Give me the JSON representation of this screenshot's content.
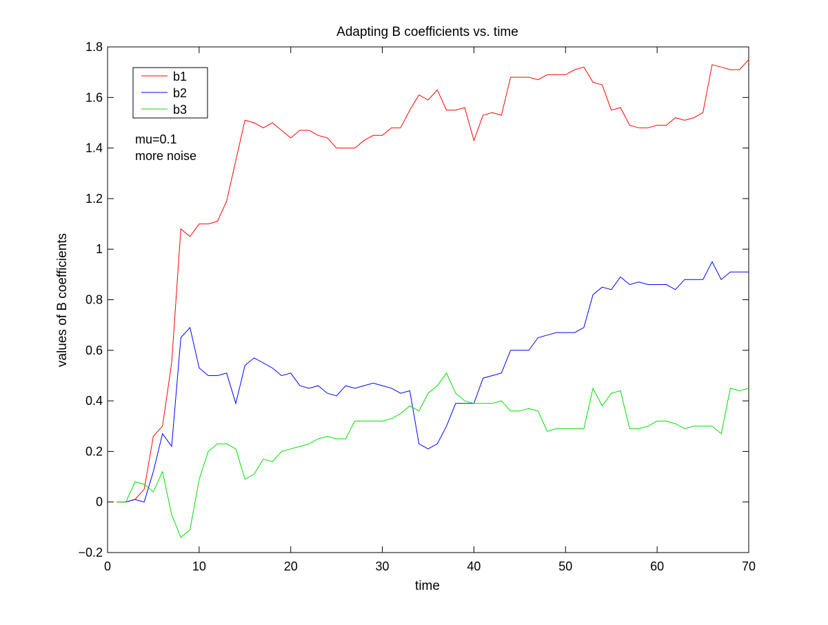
{
  "chart_data": {
    "type": "line",
    "title": "Adapting B coefficients vs. time",
    "xlabel": "time",
    "ylabel": "values of B coefficients",
    "xlim": [
      0,
      70
    ],
    "ylim": [
      -0.2,
      1.8
    ],
    "xticks": [
      0,
      10,
      20,
      30,
      40,
      50,
      60,
      70
    ],
    "xtick_labels": [
      "0",
      "10",
      "20",
      "30",
      "40",
      "50",
      "60",
      "70"
    ],
    "yticks": [
      -0.2,
      0,
      0.2,
      0.4,
      0.6,
      0.8,
      1.0,
      1.2,
      1.4,
      1.6,
      1.8
    ],
    "ytick_labels": [
      "−0.2",
      "0",
      "0.2",
      "0.4",
      "0.6",
      "0.8",
      "1",
      "1.2",
      "1.4",
      "1.6",
      "1.8"
    ],
    "grid": false,
    "legend_position": "top-left",
    "annotation": [
      "mu=0.1",
      "more noise"
    ],
    "x": [
      1,
      2,
      3,
      4,
      5,
      6,
      7,
      8,
      9,
      10,
      11,
      12,
      13,
      14,
      15,
      16,
      17,
      18,
      19,
      20,
      21,
      22,
      23,
      24,
      25,
      26,
      27,
      28,
      29,
      30,
      31,
      32,
      33,
      34,
      35,
      36,
      37,
      38,
      39,
      40,
      41,
      42,
      43,
      44,
      45,
      46,
      47,
      48,
      49,
      50,
      51,
      52,
      53,
      54,
      55,
      56,
      57,
      58,
      59,
      60,
      61,
      62,
      63,
      64,
      65,
      66,
      67,
      68,
      69,
      70
    ],
    "series": [
      {
        "name": "b1",
        "color": "#ff0000",
        "values": [
          0,
          0,
          0.01,
          0.05,
          0.26,
          0.3,
          0.55,
          1.08,
          1.05,
          1.1,
          1.1,
          1.11,
          1.19,
          1.35,
          1.51,
          1.5,
          1.48,
          1.5,
          1.47,
          1.44,
          1.47,
          1.47,
          1.45,
          1.44,
          1.4,
          1.4,
          1.4,
          1.43,
          1.45,
          1.45,
          1.48,
          1.48,
          1.55,
          1.61,
          1.59,
          1.63,
          1.55,
          1.55,
          1.56,
          1.43,
          1.53,
          1.54,
          1.53,
          1.68,
          1.68,
          1.68,
          1.67,
          1.69,
          1.69,
          1.69,
          1.71,
          1.72,
          1.66,
          1.65,
          1.55,
          1.56,
          1.49,
          1.48,
          1.48,
          1.49,
          1.49,
          1.52,
          1.51,
          1.52,
          1.54,
          1.73,
          1.72,
          1.71,
          1.71,
          1.75
        ]
      },
      {
        "name": "b2",
        "color": "#0000ff",
        "values": [
          null,
          0,
          0.01,
          0.0,
          0.12,
          0.27,
          0.22,
          0.65,
          0.69,
          0.53,
          0.5,
          0.5,
          0.51,
          0.39,
          0.54,
          0.57,
          0.55,
          0.53,
          0.5,
          0.51,
          0.46,
          0.45,
          0.46,
          0.43,
          0.42,
          0.46,
          0.45,
          0.46,
          0.47,
          0.46,
          0.45,
          0.43,
          0.44,
          0.23,
          0.21,
          0.23,
          0.3,
          0.39,
          0.39,
          0.39,
          0.49,
          0.5,
          0.51,
          0.6,
          0.6,
          0.6,
          0.65,
          0.66,
          0.67,
          0.67,
          0.67,
          0.69,
          0.82,
          0.85,
          0.84,
          0.89,
          0.86,
          0.87,
          0.86,
          0.86,
          0.86,
          0.84,
          0.88,
          0.88,
          0.88,
          0.95,
          0.88,
          0.91,
          0.91,
          0.91
        ]
      },
      {
        "name": "b3",
        "color": "#00dd00",
        "values": [
          0,
          0,
          0.08,
          0.07,
          0.04,
          0.12,
          -0.05,
          -0.14,
          -0.11,
          0.09,
          0.2,
          0.23,
          0.23,
          0.21,
          0.09,
          0.11,
          0.17,
          0.16,
          0.2,
          0.21,
          0.22,
          0.23,
          0.25,
          0.26,
          0.25,
          0.25,
          0.32,
          0.32,
          0.32,
          0.32,
          0.33,
          0.35,
          0.38,
          0.36,
          0.43,
          0.46,
          0.51,
          0.43,
          0.4,
          0.39,
          0.39,
          0.39,
          0.4,
          0.36,
          0.36,
          0.37,
          0.36,
          0.28,
          0.29,
          0.29,
          0.29,
          0.29,
          0.45,
          0.38,
          0.43,
          0.44,
          0.29,
          0.29,
          0.3,
          0.32,
          0.32,
          0.31,
          0.29,
          0.3,
          0.3,
          0.3,
          0.27,
          0.45,
          0.44,
          0.45
        ]
      }
    ]
  }
}
